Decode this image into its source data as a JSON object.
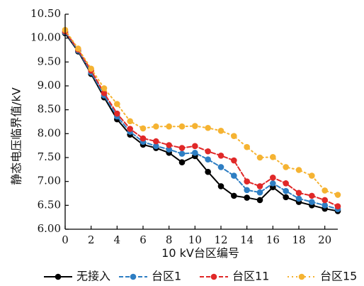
{
  "chart_data": {
    "type": "line",
    "xlabel": "10 kV台区编号",
    "ylabel": "静态电压临界值/kV",
    "xlim": [
      0,
      21
    ],
    "ylim": [
      6.0,
      10.5
    ],
    "x_ticks": [
      "0",
      "2",
      "4",
      "6",
      "8",
      "10",
      "12",
      "14",
      "16",
      "18",
      "20"
    ],
    "y_ticks": [
      "6.00",
      "6.50",
      "7.00",
      "7.50",
      "8.00",
      "8.50",
      "9.00",
      "9.50",
      "10.00",
      "10.50"
    ],
    "grid": false,
    "legend_position": "bottom",
    "x": [
      0,
      1,
      2,
      3,
      4,
      5,
      6,
      7,
      8,
      9,
      10,
      11,
      12,
      13,
      14,
      15,
      16,
      17,
      18,
      19,
      20,
      21
    ],
    "series": [
      {
        "name": "无接入",
        "color": "#000000",
        "line_style": "solid",
        "marker": "circle",
        "values": [
          10.1,
          9.72,
          9.25,
          8.76,
          8.3,
          7.98,
          7.77,
          7.7,
          7.6,
          7.4,
          7.53,
          7.2,
          6.9,
          6.7,
          6.66,
          6.61,
          6.88,
          6.67,
          6.57,
          6.5,
          6.43,
          6.38
        ]
      },
      {
        "name": "台区1",
        "color": "#2e7ec3",
        "line_style": "dashed",
        "marker": "circle",
        "values": [
          10.12,
          9.74,
          9.28,
          8.8,
          8.36,
          8.04,
          7.83,
          7.74,
          7.67,
          7.58,
          7.6,
          7.46,
          7.3,
          7.12,
          6.82,
          6.77,
          6.96,
          6.8,
          6.64,
          6.57,
          6.5,
          6.42
        ]
      },
      {
        "name": "台区11",
        "color": "#e02828",
        "line_style": "dashed",
        "marker": "circle",
        "values": [
          10.14,
          9.76,
          9.32,
          8.85,
          8.42,
          8.1,
          7.9,
          7.84,
          7.76,
          7.7,
          7.74,
          7.63,
          7.54,
          7.44,
          7.0,
          6.9,
          7.08,
          6.96,
          6.76,
          6.7,
          6.61,
          6.48
        ]
      },
      {
        "name": "台区15",
        "color": "#f5b332",
        "line_style": "dotted",
        "marker": "circle",
        "values": [
          10.17,
          9.78,
          9.36,
          8.95,
          8.62,
          8.26,
          8.11,
          8.15,
          8.15,
          8.15,
          8.16,
          8.12,
          8.06,
          7.95,
          7.72,
          7.5,
          7.51,
          7.3,
          7.24,
          7.12,
          6.81,
          6.72
        ]
      }
    ]
  }
}
